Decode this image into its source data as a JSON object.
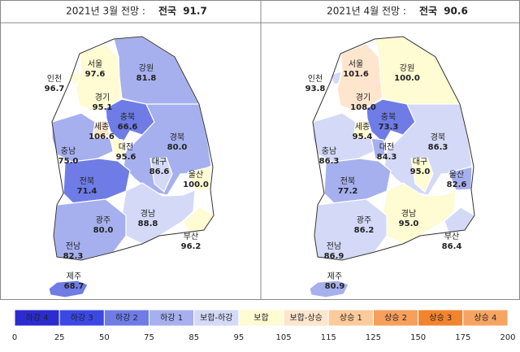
{
  "panels": [
    {
      "title": "2021년 3월 전망 :",
      "national_label": "전국",
      "national_value": "91.7",
      "regions": [
        {
          "name": "서울",
          "value": "97.6"
        },
        {
          "name": "인천",
          "value": "96.7"
        },
        {
          "name": "경기",
          "value": "95.1"
        },
        {
          "name": "강원",
          "value": "81.8"
        },
        {
          "name": "충북",
          "value": "66.6"
        },
        {
          "name": "세종",
          "value": "106.6"
        },
        {
          "name": "충남",
          "value": "75.0"
        },
        {
          "name": "대전",
          "value": "95.6"
        },
        {
          "name": "경북",
          "value": "80.0"
        },
        {
          "name": "대구",
          "value": "86.6"
        },
        {
          "name": "울산",
          "value": "100.0"
        },
        {
          "name": "전북",
          "value": "71.4"
        },
        {
          "name": "경남",
          "value": "88.8"
        },
        {
          "name": "광주",
          "value": "80.0"
        },
        {
          "name": "전남",
          "value": "82.3"
        },
        {
          "name": "부산",
          "value": "96.2"
        },
        {
          "name": "제주",
          "value": "68.7"
        }
      ]
    },
    {
      "title": "2021년 4월 전망 :",
      "national_label": "전국",
      "national_value": "90.6",
      "regions": [
        {
          "name": "서울",
          "value": "101.6"
        },
        {
          "name": "인천",
          "value": "93.8"
        },
        {
          "name": "경기",
          "value": "108.0"
        },
        {
          "name": "강원",
          "value": "100.0"
        },
        {
          "name": "충북",
          "value": "73.3"
        },
        {
          "name": "세종",
          "value": "95.4"
        },
        {
          "name": "충남",
          "value": "86.3"
        },
        {
          "name": "대전",
          "value": "84.3"
        },
        {
          "name": "경북",
          "value": "86.3"
        },
        {
          "name": "대구",
          "value": "95.0"
        },
        {
          "name": "울산",
          "value": "82.6"
        },
        {
          "name": "전북",
          "value": "77.2"
        },
        {
          "name": "경남",
          "value": "95.0"
        },
        {
          "name": "광주",
          "value": "86.2"
        },
        {
          "name": "전남",
          "value": "86.9"
        },
        {
          "name": "부산",
          "value": "86.4"
        },
        {
          "name": "제주",
          "value": "80.9"
        }
      ]
    }
  ],
  "legend": {
    "classes": [
      {
        "label": "하강 4",
        "color": "#2b2bd0"
      },
      {
        "label": "하강 3",
        "color": "#3b48e4"
      },
      {
        "label": "하강 2",
        "color": "#6f7ce6"
      },
      {
        "label": "하강 1",
        "color": "#a6b0ee"
      },
      {
        "label": "보합-하강",
        "color": "#d3d9f6"
      },
      {
        "label": "보합",
        "color": "#fffbd2"
      },
      {
        "label": "보합-상승",
        "color": "#fde6cd"
      },
      {
        "label": "상승 1",
        "color": "#fbcb9c"
      },
      {
        "label": "상승 2",
        "color": "#f6a05c"
      },
      {
        "label": "상승 3",
        "color": "#f2842e"
      },
      {
        "label": "상승 4",
        "color": "#f7a462"
      }
    ],
    "ticks": [
      0,
      25,
      50,
      75,
      85,
      95,
      105,
      115,
      125,
      150,
      175,
      200
    ]
  }
}
